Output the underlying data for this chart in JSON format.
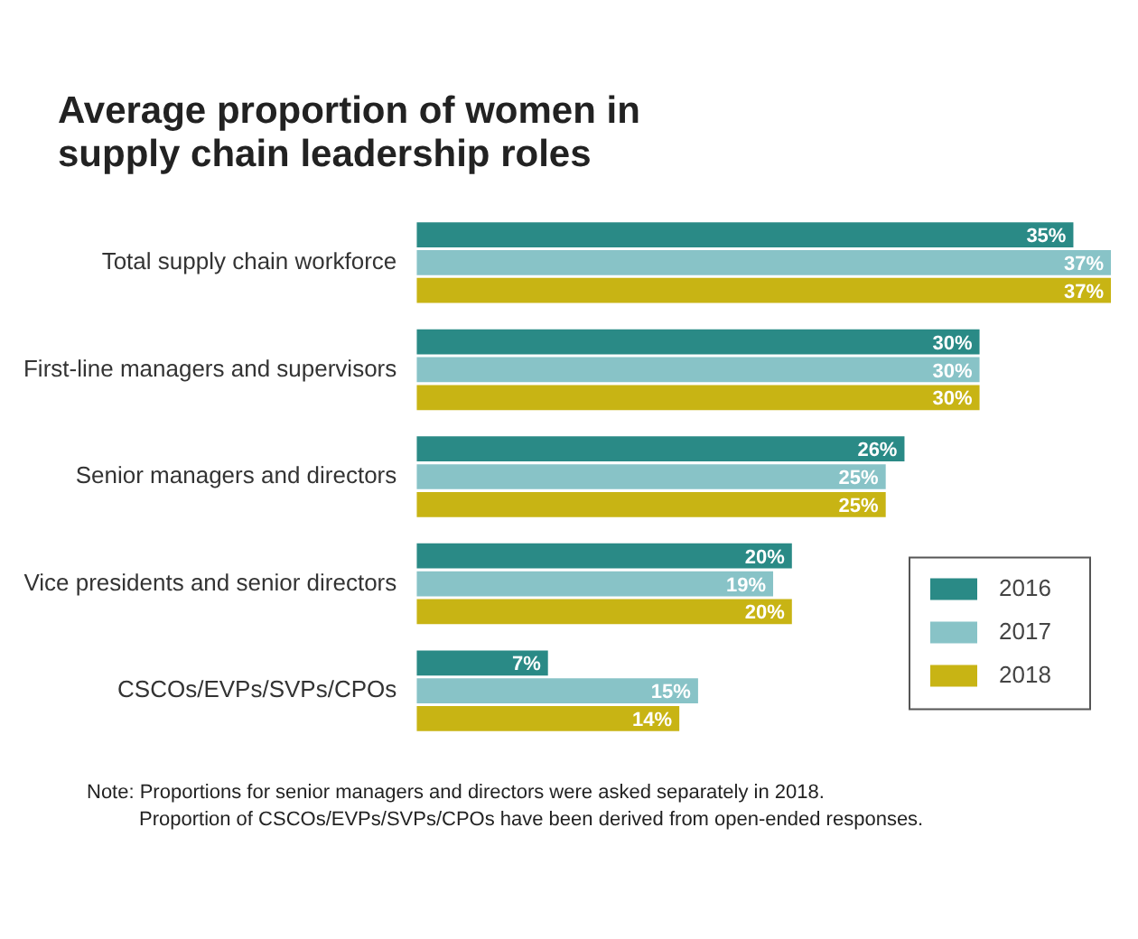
{
  "chart_data": {
    "type": "bar",
    "orientation": "horizontal",
    "title": "Average proportion of women in supply chain leadership roles",
    "categories": [
      "Total supply chain workforce",
      "First-line managers and supervisors",
      "Senior managers and directors",
      "Vice presidents and senior directors",
      "CSCOs/EVPs/SVPs/CPOs"
    ],
    "series": [
      {
        "name": "2016",
        "color": "#2a8a86",
        "values": [
          35,
          30,
          26,
          20,
          7
        ],
        "value_labels": [
          "35%",
          "30%",
          "26%",
          "20%",
          "7%"
        ]
      },
      {
        "name": "2017",
        "color": "#88c3c7",
        "values": [
          37,
          30,
          25,
          19,
          15
        ],
        "value_labels": [
          "37%",
          "30%",
          "25%",
          "19%",
          "15%"
        ]
      },
      {
        "name": "2018",
        "color": "#c8b414",
        "values": [
          37,
          30,
          25,
          20,
          14
        ],
        "value_labels": [
          "37%",
          "30%",
          "25%",
          "20%",
          "14%"
        ]
      }
    ],
    "legend": "bottom right",
    "annotations": [
      "Note: Proportions for senior managers and directors were asked separately in 2018.",
      "Proportion of CSCOs/EVPs/SVPs/CPOs have been derived from open-ended responses."
    ]
  }
}
